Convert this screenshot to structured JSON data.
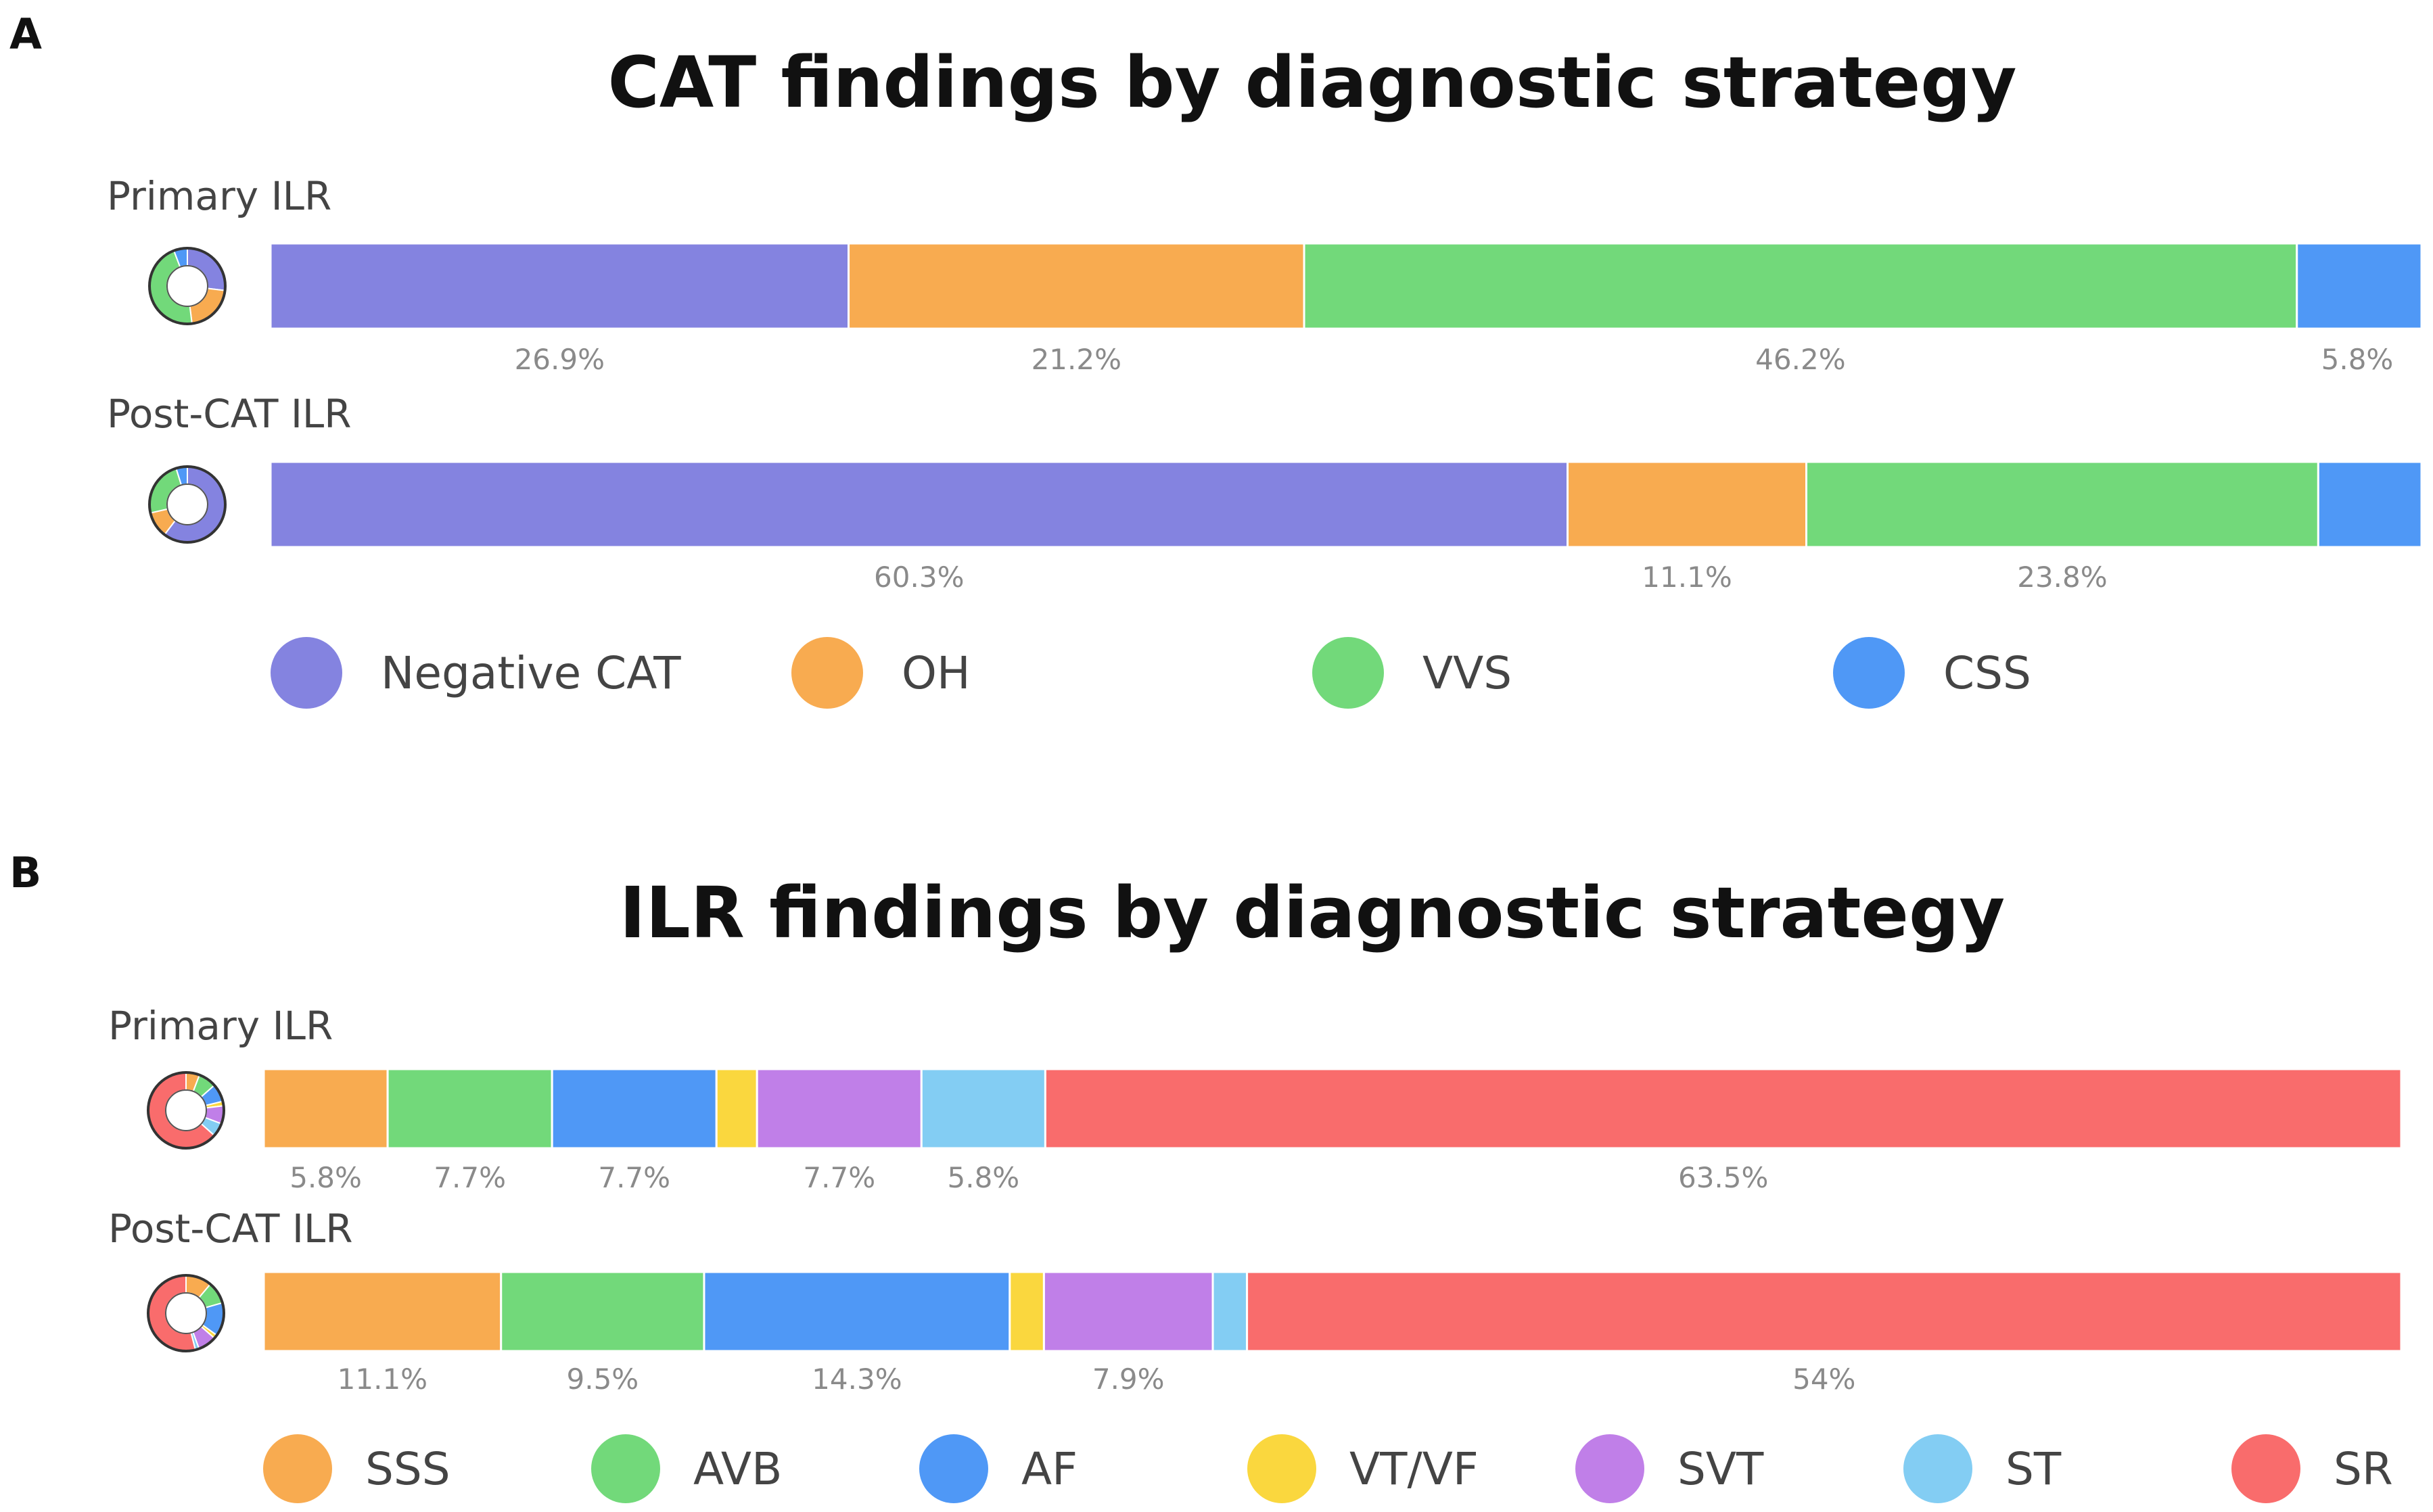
{
  "chart_data": [
    {
      "panel": "A",
      "type": "bar",
      "orientation": "horizontal-stacked-100",
      "title": "CAT findings by diagnostic strategy",
      "categories": [
        "Negative CAT",
        "OH",
        "VVS",
        "CSS"
      ],
      "colors": [
        "#8483e0",
        "#f8ab50",
        "#72d97a",
        "#4f98f6"
      ],
      "rows": [
        {
          "name": "Primary ILR",
          "values": [
            26.9,
            21.2,
            46.2,
            5.8
          ],
          "labels": [
            "26.9%",
            "21.2%",
            "46.2%",
            "5.8%"
          ]
        },
        {
          "name": "Post-CAT ILR",
          "values": [
            60.3,
            11.1,
            23.8,
            4.8
          ],
          "labels": [
            "60.3%",
            "11.1%",
            "23.8%",
            ""
          ]
        }
      ],
      "legend": [
        "Negative CAT",
        "OH",
        "VVS",
        "CSS"
      ]
    },
    {
      "panel": "B",
      "type": "bar",
      "orientation": "horizontal-stacked-100",
      "title": "ILR findings by diagnostic strategy",
      "categories": [
        "SSS",
        "AVB",
        "AF",
        "VT/VF",
        "SVT",
        "ST",
        "SR"
      ],
      "colors": [
        "#f8ab50",
        "#72d97a",
        "#4f98f6",
        "#fad73e",
        "#c07fe8",
        "#83cdf3",
        "#f96c6c"
      ],
      "rows": [
        {
          "name": "Primary ILR",
          "values": [
            5.8,
            7.7,
            7.7,
            1.9,
            7.7,
            5.8,
            63.5
          ],
          "labels": [
            "5.8%",
            "7.7%",
            "7.7%",
            "",
            "7.7%",
            "5.8%",
            "63.5%"
          ]
        },
        {
          "name": "Post-CAT ILR",
          "values": [
            11.1,
            9.5,
            14.3,
            1.6,
            7.9,
            1.6,
            54
          ],
          "labels": [
            "11.1%",
            "9.5%",
            "14.3%",
            "",
            "7.9%",
            "",
            "54%"
          ]
        }
      ],
      "legend": [
        "SSS",
        "AVB",
        "AF",
        "VT/VF",
        "SVT",
        "ST",
        "SR"
      ]
    }
  ]
}
